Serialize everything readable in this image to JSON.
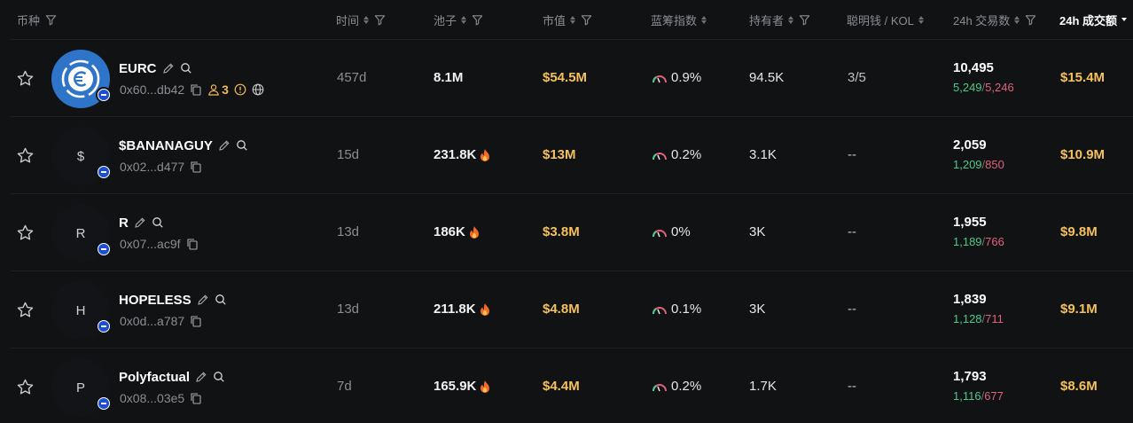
{
  "header": {
    "columns": [
      {
        "label": "币种",
        "sortable": false,
        "filter": true
      },
      {
        "label": "时间",
        "sortable": true,
        "filter": true
      },
      {
        "label": "池子",
        "sortable": true,
        "filter": true
      },
      {
        "label": "市值",
        "sortable": true,
        "filter": true
      },
      {
        "label": "蓝筹指数",
        "sortable": true,
        "filter": false
      },
      {
        "label": "持有者",
        "sortable": true,
        "filter": true
      },
      {
        "label": "聪明钱 / KOL",
        "sortable": true,
        "filter": false
      },
      {
        "label": "24h 交易数",
        "sortable": true,
        "filter": true
      },
      {
        "label": "24h 成交额",
        "sortable": true,
        "filter": false,
        "active": true
      }
    ]
  },
  "rows": [
    {
      "avatar_letter": "",
      "symbol": "EURC",
      "address": "0x60...db42",
      "holder_count_badge": "3",
      "age": "457d",
      "pool": "8.1M",
      "pool_hot": false,
      "market_cap": "$54.5M",
      "bluechip": "0.9%",
      "holders": "94.5K",
      "smart_kol": "3/5",
      "txs_total": "10,495",
      "txs_buy": "5,249",
      "txs_sell": "5,246",
      "volume": "$15.4M"
    },
    {
      "avatar_letter": "$",
      "symbol": "$BANANAGUY",
      "address": "0x02...d477",
      "age": "15d",
      "pool": "231.8K",
      "pool_hot": true,
      "market_cap": "$13M",
      "bluechip": "0.2%",
      "holders": "3.1K",
      "smart_kol": "--",
      "txs_total": "2,059",
      "txs_buy": "1,209",
      "txs_sell": "850",
      "volume": "$10.9M"
    },
    {
      "avatar_letter": "R",
      "symbol": "R",
      "address": "0x07...ac9f",
      "age": "13d",
      "pool": "186K",
      "pool_hot": true,
      "market_cap": "$3.8M",
      "bluechip": "0%",
      "holders": "3K",
      "smart_kol": "--",
      "txs_total": "1,955",
      "txs_buy": "1,189",
      "txs_sell": "766",
      "volume": "$9.8M"
    },
    {
      "avatar_letter": "H",
      "symbol": "HOPELESS",
      "address": "0x0d...a787",
      "age": "13d",
      "pool": "211.8K",
      "pool_hot": true,
      "market_cap": "$4.8M",
      "bluechip": "0.1%",
      "holders": "3K",
      "smart_kol": "--",
      "txs_total": "1,839",
      "txs_buy": "1,128",
      "txs_sell": "711",
      "volume": "$9.1M"
    },
    {
      "avatar_letter": "P",
      "symbol": "Polyfactual",
      "address": "0x08...03e5",
      "age": "7d",
      "pool": "165.9K",
      "pool_hot": true,
      "market_cap": "$4.4M",
      "bluechip": "0.2%",
      "holders": "1.7K",
      "smart_kol": "--",
      "txs_total": "1,793",
      "txs_buy": "1,116",
      "txs_sell": "677",
      "volume": "$8.6M"
    }
  ],
  "colors": {
    "background": "#111214",
    "gold": "#f4c15d",
    "buy_green": "#4fc98a",
    "sell_red": "#e2617d",
    "muted": "#8b8d93",
    "eurc_blue": "#2e74c9",
    "chain_blue": "#1a4fd4"
  },
  "icons": {
    "star": "star-icon",
    "edit": "pencil-icon",
    "search": "search-icon",
    "copy": "copy-icon",
    "holders": "user-icon",
    "warning": "alert-icon",
    "website": "globe-icon",
    "hot": "fire-icon",
    "bluechip": "gauge-icon",
    "filter": "funnel-icon",
    "chain": "base-chain-icon"
  }
}
